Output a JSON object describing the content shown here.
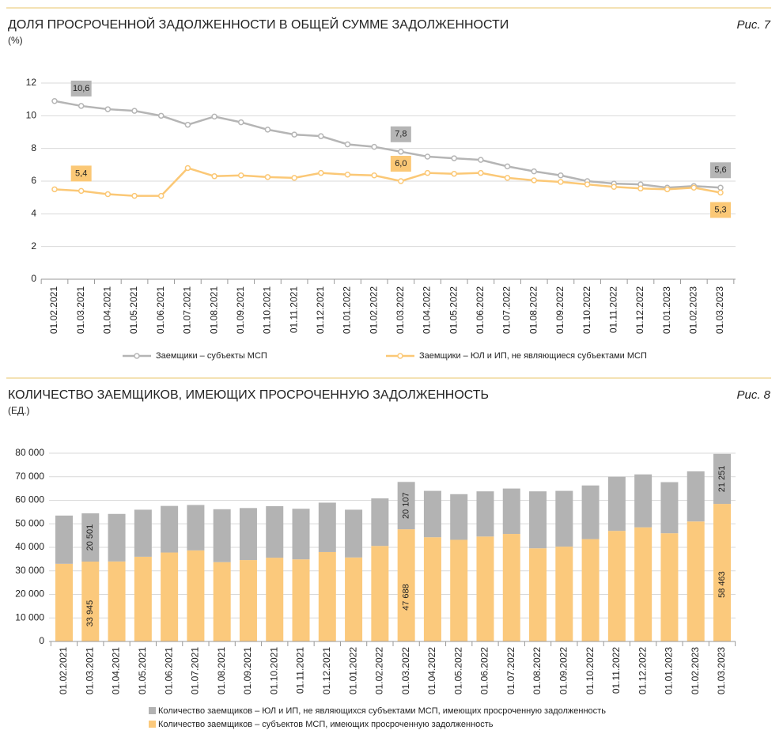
{
  "chart_data": [
    {
      "type": "line",
      "title": "ДОЛЯ ПРОСРОЧЕННОЙ ЗАДОЛЖЕННОСТИ В ОБЩЕЙ СУММЕ ЗАДОЛЖЕННОСТИ",
      "subtitle": "(%)",
      "figure_label": "Рис. 7",
      "categories": [
        "01.02.2021",
        "01.03.2021",
        "01.04.2021",
        "01.05.2021",
        "01.06.2021",
        "01.07.2021",
        "01.08.2021",
        "01.09.2021",
        "01.10.2021",
        "01.11.2021",
        "01.12.2021",
        "01.01.2022",
        "01.02.2022",
        "01.03.2022",
        "01.04.2022",
        "01.05.2022",
        "01.06.2022",
        "01.07.2022",
        "01.08.2022",
        "01.09.2022",
        "01.10.2022",
        "01.11.2022",
        "01.12.2022",
        "01.01.2023",
        "01.02.2023",
        "01.03.2023"
      ],
      "series": [
        {
          "name": "Заемщики – субъекты МСП",
          "color": "#b5b5b5",
          "values": [
            10.9,
            10.6,
            10.4,
            10.3,
            10.0,
            9.45,
            9.95,
            9.6,
            9.15,
            8.85,
            8.75,
            8.25,
            8.1,
            7.8,
            7.5,
            7.4,
            7.3,
            6.9,
            6.6,
            6.35,
            6.0,
            5.85,
            5.8,
            5.6,
            5.7,
            5.6
          ],
          "value_labels": [
            null,
            "10,6",
            null,
            null,
            null,
            null,
            null,
            null,
            null,
            null,
            null,
            null,
            null,
            "7,8",
            null,
            null,
            null,
            null,
            null,
            null,
            null,
            null,
            null,
            null,
            null,
            "5,6"
          ]
        },
        {
          "name": "Заемщики – ЮЛ и ИП, не являющиеся субъектами МСП",
          "color": "#fbc876",
          "values": [
            5.5,
            5.4,
            5.2,
            5.1,
            5.1,
            6.8,
            6.3,
            6.35,
            6.25,
            6.2,
            6.5,
            6.4,
            6.35,
            6.0,
            6.5,
            6.45,
            6.5,
            6.2,
            6.05,
            5.95,
            5.8,
            5.65,
            5.55,
            5.5,
            5.6,
            5.3
          ],
          "value_labels": [
            null,
            "5,4",
            null,
            null,
            null,
            null,
            null,
            null,
            null,
            null,
            null,
            null,
            null,
            "6,0",
            null,
            null,
            null,
            null,
            null,
            null,
            null,
            null,
            null,
            null,
            null,
            "5,3"
          ]
        }
      ],
      "ylim": [
        0,
        12
      ],
      "yticks": [
        0,
        2,
        4,
        6,
        8,
        10,
        12
      ],
      "grid": true
    },
    {
      "type": "stacked_bar",
      "title": "КОЛИЧЕСТВО ЗАЕМЩИКОВ, ИМЕЮЩИХ ПРОСРОЧЕННУЮ ЗАДОЛЖЕННОСТЬ",
      "subtitle": "(ЕД.)",
      "figure_label": "Рис. 8",
      "categories": [
        "01.02.2021",
        "01.03.2021",
        "01.04.2021",
        "01.05.2021",
        "01.06.2021",
        "01.07.2021",
        "01.08.2021",
        "01.09.2021",
        "01.10.2021",
        "01.11.2021",
        "01.12.2021",
        "01.01.2022",
        "01.02.2022",
        "01.03.2022",
        "01.04.2022",
        "01.05.2022",
        "01.06.2022",
        "01.07.2022",
        "01.08.2022",
        "01.09.2022",
        "01.10.2022",
        "01.11.2022",
        "01.12.2022",
        "01.01.2023",
        "01.02.2023",
        "01.03.2023"
      ],
      "series": [
        {
          "name": "Количество заемщиков – субъектов МСП, имеющих просроченную задолженность",
          "color": "#fbc97c",
          "values": [
            33000,
            33945,
            34000,
            36000,
            37800,
            38700,
            33700,
            34600,
            35600,
            34900,
            38000,
            35700,
            40600,
            47688,
            44300,
            43200,
            44600,
            45700,
            39600,
            40300,
            43500,
            47000,
            48500,
            46000,
            51000,
            58463
          ],
          "value_labels": [
            null,
            "33 945",
            null,
            null,
            null,
            null,
            null,
            null,
            null,
            null,
            null,
            null,
            null,
            "47 688",
            null,
            null,
            null,
            null,
            null,
            null,
            null,
            null,
            null,
            null,
            null,
            "58 463"
          ]
        },
        {
          "name": "Количество заемщиков – ЮЛ и ИП, не являющихся субъектами МСП, имеющих просроченную задолженность",
          "color": "#b3b3b3",
          "values": [
            20500,
            20501,
            20200,
            20000,
            19800,
            19300,
            22500,
            22100,
            21900,
            21500,
            21000,
            20300,
            20200,
            20107,
            19700,
            19400,
            19200,
            19300,
            24200,
            23700,
            22800,
            23000,
            22500,
            21700,
            21300,
            21251
          ],
          "value_labels": [
            null,
            "20 501",
            null,
            null,
            null,
            null,
            null,
            null,
            null,
            null,
            null,
            null,
            null,
            "20 107",
            null,
            null,
            null,
            null,
            null,
            null,
            null,
            null,
            null,
            null,
            null,
            "21 251"
          ]
        }
      ],
      "ylim": [
        0,
        80000
      ],
      "yticks": [
        0,
        {
          "value": 10000,
          "label": "10 000"
        },
        {
          "value": 20000,
          "label": "20 000"
        },
        {
          "value": 30000,
          "label": "30 000"
        },
        {
          "value": 40000,
          "label": "40 000"
        },
        {
          "value": 50000,
          "label": "50 000"
        },
        {
          "value": 60000,
          "label": "60 000"
        },
        {
          "value": 70000,
          "label": "70 000"
        },
        {
          "value": 80000,
          "label": "80 000"
        }
      ],
      "grid": true
    }
  ]
}
